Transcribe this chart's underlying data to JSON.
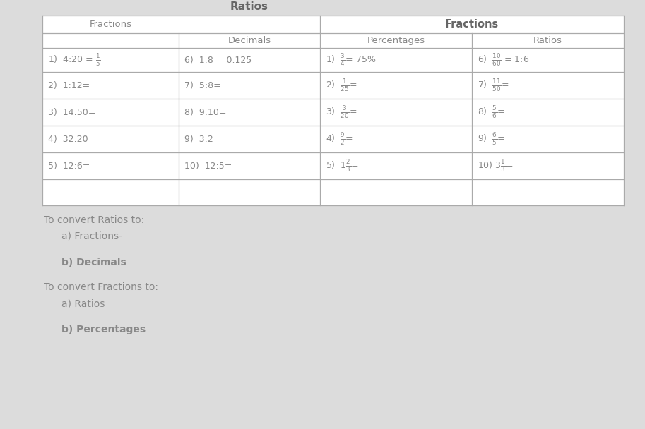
{
  "background_color": "#dcdcdc",
  "text_color": "#888888",
  "dark_text": "#666666",
  "line_color": "#aaaaaa",
  "title_ratios": "Ratios",
  "header_fractions_left": "Fractions",
  "header_decimals": "Decimals",
  "header_fractions_right": "Fractions",
  "header_percentages": "Percentages",
  "header_ratios": "Ratios",
  "fractions_col": [
    "1)  4:20 = $\\frac{1}{5}$",
    "2)  1:12=",
    "3)  14:50=",
    "4)  32:20=",
    "5)  12:6="
  ],
  "decimals_col": [
    "6)  1:8 = 0.125",
    "7)  5:8=",
    "8)  9:10=",
    "9)  3:2=",
    "10)  12:5="
  ],
  "percentages_col": [
    "1)  $\\frac{3}{4}$= 75%",
    "2)  $\\frac{1}{25}$=",
    "3)  $\\frac{3}{20}$=",
    "4)  $\\frac{9}{2}$=",
    "5)  $1\\frac{2}{3}$="
  ],
  "ratios_col": [
    "6)  $\\frac{10}{60}$ = 1:6",
    "7)  $\\frac{11}{50}$=",
    "8)  $\\frac{5}{6}$=",
    "9)  $\\frac{6}{5}$=",
    "10) $3\\frac{1}{3}$="
  ],
  "below_lines": [
    {
      "text": "To convert Ratios to:",
      "indent": 0,
      "bold": false,
      "italic": false,
      "size": 10
    },
    {
      "text": "a) Fractions-",
      "indent": 25,
      "bold": false,
      "italic": false,
      "size": 10
    },
    {
      "text": "b) Decimals",
      "indent": 25,
      "bold": true,
      "italic": false,
      "size": 10
    },
    {
      "text": "To convert Fractions to:",
      "indent": 0,
      "bold": false,
      "italic": false,
      "size": 10
    },
    {
      "text": "a) Ratios",
      "indent": 25,
      "bold": false,
      "italic": false,
      "size": 10
    },
    {
      "text": "b) Percentages",
      "indent": 25,
      "bold": true,
      "italic": false,
      "size": 10
    }
  ]
}
